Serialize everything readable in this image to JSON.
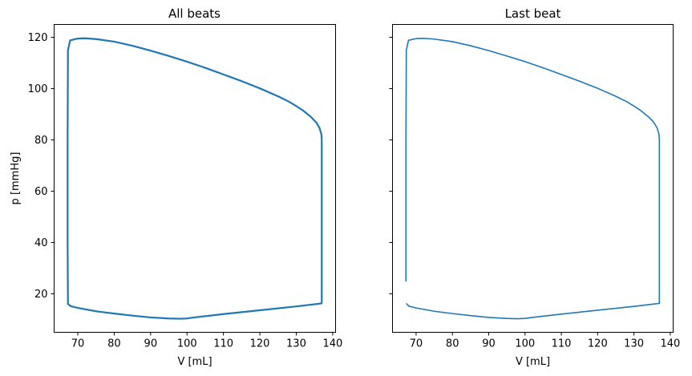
{
  "chart_data": [
    {
      "type": "line",
      "title": "All beats",
      "xlabel": "V [mL]",
      "ylabel": "p [mmHg]",
      "xlim": [
        63.5,
        140.8
      ],
      "ylim": [
        5,
        125
      ],
      "xticks": [
        70,
        80,
        90,
        100,
        110,
        120,
        130,
        140
      ],
      "yticks": [
        20,
        40,
        60,
        80,
        100,
        120
      ],
      "show_ytick_labels": true,
      "grid": false,
      "line_color": "#1f77b4",
      "series": [
        {
          "x": [
            67.3,
            67.2,
            67.2,
            67.3,
            67.9,
            70,
            72,
            75,
            80,
            85,
            90,
            95,
            100,
            105,
            110,
            115,
            120,
            125,
            128,
            130,
            132,
            134,
            135.5,
            136.4,
            136.9,
            137,
            137,
            137,
            137,
            137,
            136,
            130,
            120,
            110,
            102,
            100,
            98,
            95,
            90,
            85,
            80,
            75,
            70,
            68,
            67.3,
            67.3
          ],
          "y": [
            16.5,
            40,
            80,
            115,
            118.8,
            119.5,
            119.6,
            119.3,
            118.3,
            116.7,
            114.8,
            112.7,
            110.5,
            108.1,
            105.5,
            102.9,
            100.1,
            97,
            94.9,
            93.2,
            91.3,
            89,
            86.8,
            84.6,
            82.2,
            80,
            60,
            40,
            20,
            16.3,
            16.1,
            15.1,
            13.6,
            12.1,
            10.8,
            10.4,
            10.3,
            10.4,
            10.8,
            11.5,
            12.3,
            13.2,
            14.5,
            15.2,
            16.1,
            16.5
          ]
        }
      ]
    },
    {
      "type": "line",
      "title": "Last beat",
      "xlabel": "V [mL]",
      "ylabel": "",
      "xlim": [
        63.5,
        140.8
      ],
      "ylim": [
        5,
        125
      ],
      "xticks": [
        70,
        80,
        90,
        100,
        110,
        120,
        130,
        140
      ],
      "yticks": [
        20,
        40,
        60,
        80,
        100,
        120
      ],
      "show_ytick_labels": false,
      "grid": false,
      "line_color": "#1f77b4",
      "series": [
        {
          "x": [
            67.2,
            67.2,
            67.2,
            67.2,
            67.3,
            67.9,
            70,
            72,
            75,
            80,
            85,
            90,
            95,
            100,
            105,
            110,
            115,
            120,
            125,
            128,
            130,
            132,
            134,
            135.5,
            136.4,
            136.9,
            137,
            137,
            137,
            137,
            137,
            136,
            130,
            120,
            110,
            102,
            100,
            98,
            95,
            90,
            85,
            80,
            75,
            70,
            68,
            67.4
          ],
          "y": [
            39,
            30,
            25,
            80,
            115,
            118.8,
            119.5,
            119.6,
            119.3,
            118.3,
            116.7,
            114.8,
            112.7,
            110.5,
            108.1,
            105.5,
            102.9,
            100.1,
            97,
            94.9,
            93.2,
            91.3,
            89,
            86.8,
            84.6,
            82.2,
            80,
            60,
            40,
            20,
            16.3,
            16.1,
            15.1,
            13.6,
            12.1,
            10.8,
            10.4,
            10.3,
            10.4,
            10.8,
            11.5,
            12.3,
            13.2,
            14.5,
            15.2,
            16.1
          ]
        }
      ]
    }
  ]
}
